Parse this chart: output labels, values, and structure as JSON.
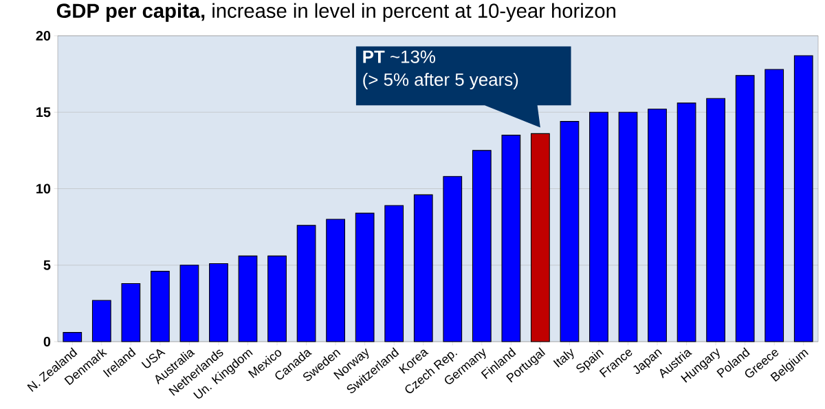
{
  "chart_data": {
    "type": "bar",
    "title": "**GDP per capita,** increase in level in percent at 10-year horizon",
    "categories": [
      "N. Zealand",
      "Denmark",
      "Ireland",
      "USA",
      "Australia",
      "Netherlands",
      "Un. Kingdom",
      "Mexico",
      "Canada",
      "Sweden",
      "Norway",
      "Switzerland",
      "Korea",
      "Czech Rep.",
      "Germany",
      "Finland",
      "Portugal",
      "Italy",
      "Spain",
      "France",
      "Japan",
      "Austria",
      "Hungary",
      "Poland",
      "Greece",
      "Belgium"
    ],
    "values": [
      0.6,
      2.7,
      3.8,
      4.6,
      5.0,
      5.1,
      5.6,
      5.6,
      7.6,
      8.0,
      8.4,
      8.9,
      9.6,
      10.8,
      12.5,
      13.5,
      13.6,
      14.4,
      15.0,
      15.0,
      15.2,
      15.6,
      15.9,
      17.4,
      17.8,
      18.7
    ],
    "colors": [
      "#0000ff",
      "#0000ff",
      "#0000ff",
      "#0000ff",
      "#0000ff",
      "#0000ff",
      "#0000ff",
      "#0000ff",
      "#0000ff",
      "#0000ff",
      "#0000ff",
      "#0000ff",
      "#0000ff",
      "#0000ff",
      "#0000ff",
      "#0000ff",
      "#c00000",
      "#0000ff",
      "#0000ff",
      "#0000ff",
      "#0000ff",
      "#0000ff",
      "#0000ff",
      "#0000ff",
      "#0000ff",
      "#0000ff"
    ],
    "ylim": [
      0,
      20
    ],
    "yticks": [
      0,
      5,
      10,
      15,
      20
    ],
    "grid": "y",
    "annotations": [
      "**PT** ~13%",
      "(> 5% after 5 years)"
    ]
  }
}
